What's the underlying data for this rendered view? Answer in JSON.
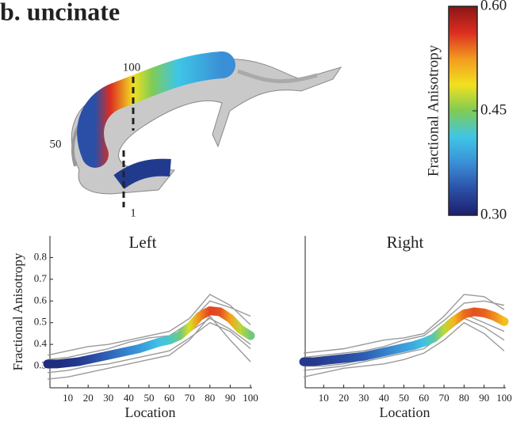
{
  "title": "b. uncinate",
  "tract": {
    "labels": [
      "100",
      "50",
      "1"
    ]
  },
  "colorbar": {
    "label": "Fractional Anisotropy",
    "lim": [
      0.3,
      0.6
    ],
    "ticks": [
      {
        "value": 0.3,
        "label": "0.30"
      },
      {
        "value": 0.45,
        "label": "0.45"
      },
      {
        "value": 0.6,
        "label": "0.60"
      }
    ],
    "colors": [
      "#1c1f6e",
      "#2b4fa6",
      "#3a8fd6",
      "#3fc6e6",
      "#7fcb55",
      "#f2e11f",
      "#f39a1f",
      "#dc2d20",
      "#8a1616"
    ]
  },
  "chart_data": [
    {
      "type": "line",
      "title": "Left",
      "xlabel": "Location",
      "ylabel": "Fractional Anisotropy",
      "xlim": [
        0,
        100
      ],
      "xticks": [
        10,
        20,
        30,
        40,
        50,
        60,
        70,
        80,
        90,
        100
      ],
      "ylim": [
        0.2,
        0.9
      ],
      "yticks": [
        0.3,
        0.4,
        0.5,
        0.6,
        0.7,
        0.8
      ],
      "x": [
        0,
        5,
        10,
        15,
        20,
        25,
        30,
        35,
        40,
        45,
        50,
        55,
        60,
        65,
        70,
        75,
        80,
        85,
        90,
        95,
        100
      ],
      "mean": [
        0.31,
        0.31,
        0.315,
        0.32,
        0.33,
        0.34,
        0.35,
        0.36,
        0.37,
        0.38,
        0.395,
        0.41,
        0.42,
        0.44,
        0.48,
        0.53,
        0.555,
        0.55,
        0.52,
        0.47,
        0.44
      ],
      "subject_color": "#9a9a9a",
      "subject_x": [
        0,
        10,
        20,
        30,
        40,
        50,
        60,
        70,
        80,
        90,
        100
      ],
      "subjects": [
        [
          0.27,
          0.28,
          0.3,
          0.31,
          0.33,
          0.35,
          0.37,
          0.43,
          0.5,
          0.46,
          0.38
        ],
        [
          0.35,
          0.37,
          0.39,
          0.4,
          0.42,
          0.44,
          0.46,
          0.52,
          0.63,
          0.58,
          0.49
        ],
        [
          0.3,
          0.31,
          0.33,
          0.34,
          0.36,
          0.38,
          0.41,
          0.48,
          0.56,
          0.5,
          0.44
        ],
        [
          0.24,
          0.25,
          0.27,
          0.29,
          0.31,
          0.33,
          0.35,
          0.42,
          0.53,
          0.42,
          0.32
        ],
        [
          0.33,
          0.34,
          0.36,
          0.38,
          0.41,
          0.43,
          0.44,
          0.5,
          0.6,
          0.57,
          0.53
        ],
        [
          0.29,
          0.3,
          0.32,
          0.35,
          0.37,
          0.4,
          0.42,
          0.46,
          0.52,
          0.47,
          0.4
        ]
      ]
    },
    {
      "type": "line",
      "title": "Right",
      "xlabel": "Location",
      "xlim": [
        0,
        100
      ],
      "xticks": [
        10,
        20,
        30,
        40,
        50,
        60,
        70,
        80,
        90,
        100
      ],
      "ylim": [
        0.2,
        0.9
      ],
      "x": [
        0,
        5,
        10,
        15,
        20,
        25,
        30,
        35,
        40,
        45,
        50,
        55,
        60,
        65,
        70,
        75,
        80,
        85,
        90,
        95,
        100
      ],
      "mean": [
        0.32,
        0.32,
        0.325,
        0.33,
        0.335,
        0.34,
        0.345,
        0.355,
        0.365,
        0.375,
        0.385,
        0.395,
        0.41,
        0.43,
        0.47,
        0.51,
        0.54,
        0.55,
        0.545,
        0.53,
        0.505
      ],
      "subject_color": "#9a9a9a",
      "subject_x": [
        0,
        10,
        20,
        30,
        40,
        50,
        60,
        70,
        80,
        90,
        100
      ],
      "subjects": [
        [
          0.28,
          0.29,
          0.3,
          0.32,
          0.34,
          0.36,
          0.38,
          0.45,
          0.52,
          0.48,
          0.42
        ],
        [
          0.36,
          0.37,
          0.38,
          0.4,
          0.42,
          0.43,
          0.45,
          0.53,
          0.63,
          0.62,
          0.56
        ],
        [
          0.31,
          0.32,
          0.33,
          0.34,
          0.36,
          0.38,
          0.4,
          0.47,
          0.56,
          0.55,
          0.5
        ],
        [
          0.25,
          0.27,
          0.29,
          0.3,
          0.31,
          0.33,
          0.36,
          0.42,
          0.5,
          0.45,
          0.37
        ],
        [
          0.34,
          0.35,
          0.36,
          0.37,
          0.39,
          0.42,
          0.44,
          0.51,
          0.59,
          0.6,
          0.58
        ],
        [
          0.3,
          0.3,
          0.31,
          0.33,
          0.36,
          0.38,
          0.41,
          0.48,
          0.54,
          0.5,
          0.46
        ]
      ]
    }
  ]
}
